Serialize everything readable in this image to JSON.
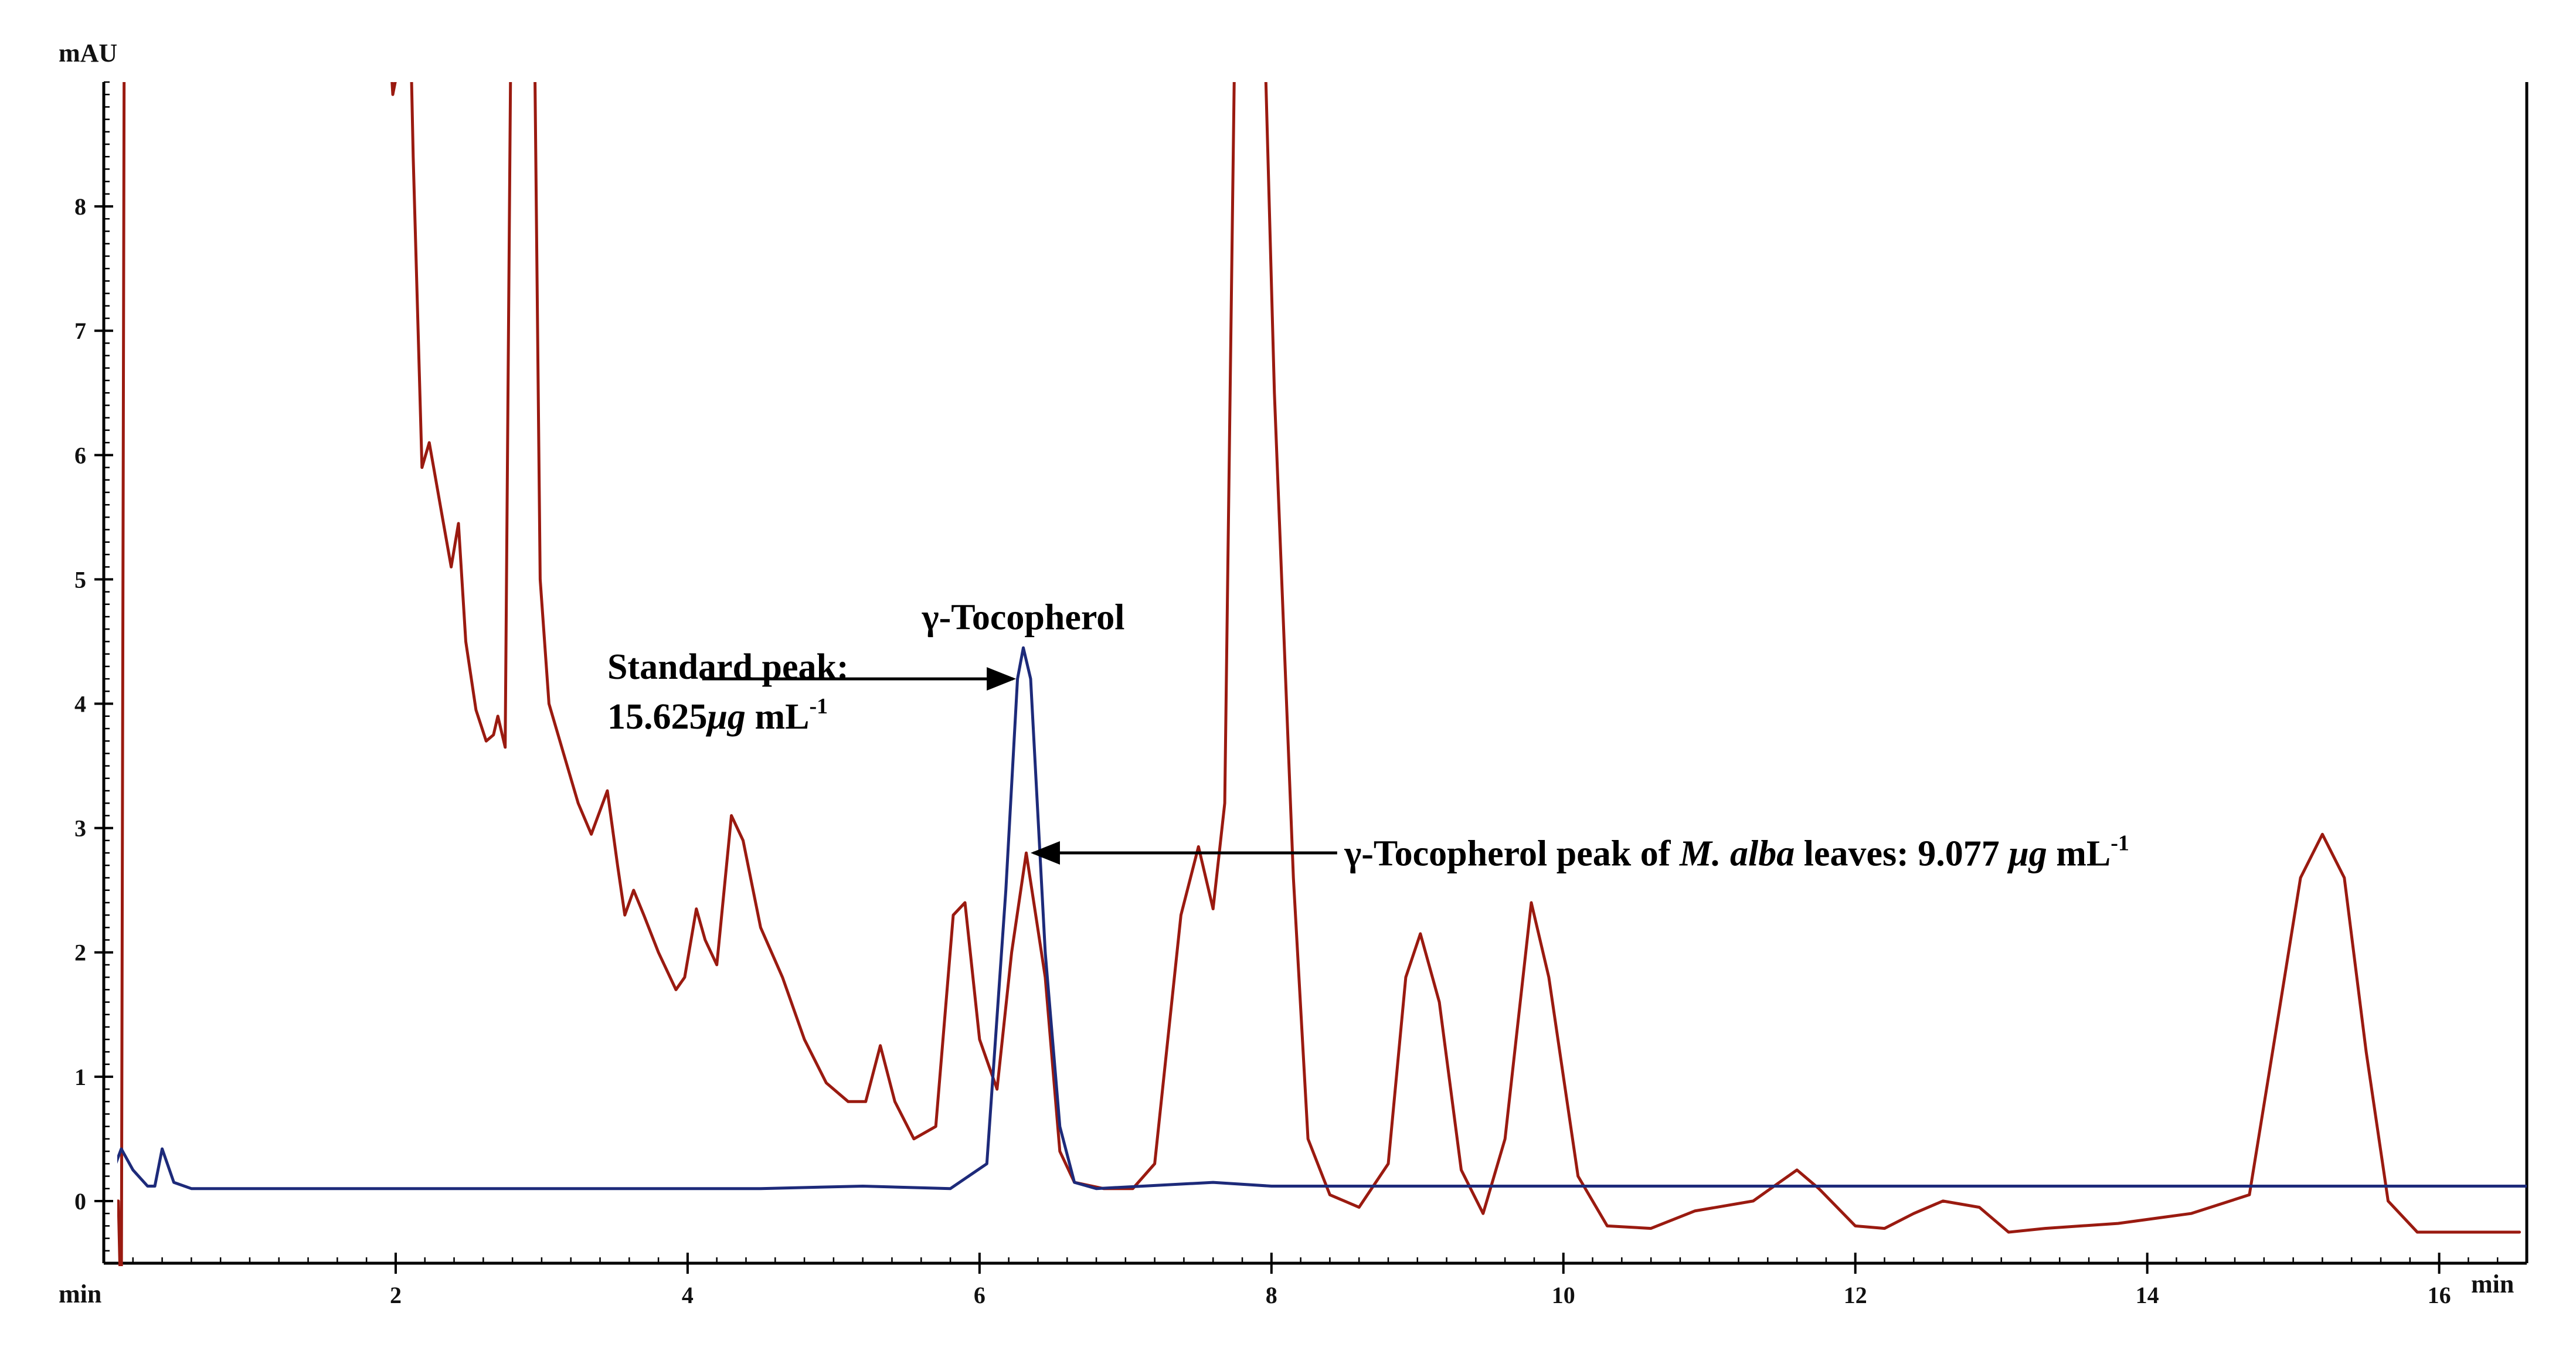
{
  "chart_data": {
    "type": "line",
    "xlabel": "min",
    "ylabel": "mAU",
    "xlim": [
      0.0,
      16.6
    ],
    "ylim": [
      -0.5,
      9.0
    ],
    "x_ticks": [
      2,
      4,
      6,
      8,
      10,
      12,
      14,
      16
    ],
    "y_ticks": [
      0,
      1,
      2,
      3,
      4,
      5,
      6,
      7,
      8
    ],
    "y_tick_labels": [
      "0",
      "1",
      "2",
      "3",
      "4",
      "5",
      "6",
      "7",
      "8"
    ],
    "x_tick_labels": [
      "2",
      "4",
      "6",
      "8",
      "10",
      "12",
      "14",
      "16"
    ],
    "colors": {
      "sample": "#9a1a10",
      "standard": "#1d2a7a",
      "axis": "#000000"
    },
    "series": [
      {
        "key": "sample",
        "color": "#9a1a10",
        "points": [
          [
            0.05,
            0.0
          ],
          [
            0.1,
            0.0
          ],
          [
            0.12,
            -1.0
          ],
          [
            0.14,
            9.5
          ],
          [
            0.2,
            9.5
          ],
          [
            1.95,
            9.5
          ],
          [
            1.98,
            8.9
          ],
          [
            2.03,
            9.2
          ],
          [
            2.1,
            9.5
          ],
          [
            2.12,
            8.4
          ],
          [
            2.18,
            5.9
          ],
          [
            2.23,
            6.1
          ],
          [
            2.26,
            5.9
          ],
          [
            2.32,
            5.5
          ],
          [
            2.38,
            5.1
          ],
          [
            2.43,
            5.45
          ],
          [
            2.48,
            4.5
          ],
          [
            2.55,
            3.95
          ],
          [
            2.62,
            3.7
          ],
          [
            2.67,
            3.75
          ],
          [
            2.7,
            3.9
          ],
          [
            2.75,
            3.65
          ],
          [
            2.79,
            9.5
          ],
          [
            2.95,
            9.5
          ],
          [
            2.99,
            5.0
          ],
          [
            3.05,
            4.0
          ],
          [
            3.15,
            3.6
          ],
          [
            3.25,
            3.2
          ],
          [
            3.34,
            2.95
          ],
          [
            3.45,
            3.3
          ],
          [
            3.52,
            2.7
          ],
          [
            3.57,
            2.3
          ],
          [
            3.63,
            2.5
          ],
          [
            3.7,
            2.3
          ],
          [
            3.8,
            2.0
          ],
          [
            3.92,
            1.7
          ],
          [
            3.98,
            1.8
          ],
          [
            4.06,
            2.35
          ],
          [
            4.12,
            2.1
          ],
          [
            4.2,
            1.9
          ],
          [
            4.3,
            3.1
          ],
          [
            4.38,
            2.9
          ],
          [
            4.5,
            2.2
          ],
          [
            4.65,
            1.8
          ],
          [
            4.8,
            1.3
          ],
          [
            4.95,
            0.95
          ],
          [
            5.1,
            0.8
          ],
          [
            5.22,
            0.8
          ],
          [
            5.32,
            1.25
          ],
          [
            5.42,
            0.8
          ],
          [
            5.55,
            0.5
          ],
          [
            5.7,
            0.6
          ],
          [
            5.82,
            2.3
          ],
          [
            5.9,
            2.4
          ],
          [
            6.0,
            1.3
          ],
          [
            6.12,
            0.9
          ],
          [
            6.22,
            2.0
          ],
          [
            6.32,
            2.8
          ],
          [
            6.45,
            1.8
          ],
          [
            6.55,
            0.4
          ],
          [
            6.65,
            0.15
          ],
          [
            6.85,
            0.1
          ],
          [
            7.05,
            0.1
          ],
          [
            7.2,
            0.3
          ],
          [
            7.38,
            2.3
          ],
          [
            7.5,
            2.85
          ],
          [
            7.6,
            2.35
          ],
          [
            7.68,
            3.2
          ],
          [
            7.75,
            9.5
          ],
          [
            7.95,
            9.5
          ],
          [
            8.02,
            6.5
          ],
          [
            8.15,
            2.6
          ],
          [
            8.25,
            0.5
          ],
          [
            8.4,
            0.05
          ],
          [
            8.6,
            -0.05
          ],
          [
            8.8,
            0.3
          ],
          [
            8.92,
            1.8
          ],
          [
            9.02,
            2.15
          ],
          [
            9.15,
            1.6
          ],
          [
            9.3,
            0.25
          ],
          [
            9.45,
            -0.1
          ],
          [
            9.6,
            0.5
          ],
          [
            9.78,
            2.4
          ],
          [
            9.9,
            1.8
          ],
          [
            10.1,
            0.2
          ],
          [
            10.3,
            -0.2
          ],
          [
            10.6,
            -0.22
          ],
          [
            10.9,
            -0.08
          ],
          [
            11.3,
            0.0
          ],
          [
            11.6,
            0.25
          ],
          [
            11.75,
            0.1
          ],
          [
            12.0,
            -0.2
          ],
          [
            12.2,
            -0.22
          ],
          [
            12.4,
            -0.1
          ],
          [
            12.6,
            0.0
          ],
          [
            12.85,
            -0.05
          ],
          [
            13.05,
            -0.25
          ],
          [
            13.3,
            -0.22
          ],
          [
            13.8,
            -0.18
          ],
          [
            14.3,
            -0.1
          ],
          [
            14.7,
            0.05
          ],
          [
            14.9,
            1.5
          ],
          [
            15.05,
            2.6
          ],
          [
            15.2,
            2.95
          ],
          [
            15.35,
            2.6
          ],
          [
            15.5,
            1.2
          ],
          [
            15.65,
            0.0
          ],
          [
            15.85,
            -0.25
          ],
          [
            16.55,
            -0.25
          ]
        ]
      },
      {
        "key": "standard",
        "color": "#1d2a7a",
        "points": [
          [
            0.0,
            0.08
          ],
          [
            0.05,
            0.2
          ],
          [
            0.12,
            0.42
          ],
          [
            0.2,
            0.25
          ],
          [
            0.3,
            0.12
          ],
          [
            0.35,
            0.12
          ],
          [
            0.4,
            0.42
          ],
          [
            0.48,
            0.15
          ],
          [
            0.6,
            0.1
          ],
          [
            1.0,
            0.1
          ],
          [
            4.5,
            0.1
          ],
          [
            5.2,
            0.12
          ],
          [
            5.8,
            0.1
          ],
          [
            6.05,
            0.3
          ],
          [
            6.18,
            2.5
          ],
          [
            6.26,
            4.2
          ],
          [
            6.3,
            4.45
          ],
          [
            6.35,
            4.2
          ],
          [
            6.45,
            2.0
          ],
          [
            6.55,
            0.6
          ],
          [
            6.65,
            0.15
          ],
          [
            6.8,
            0.1
          ],
          [
            7.6,
            0.15
          ],
          [
            8.0,
            0.12
          ],
          [
            16.6,
            0.12
          ]
        ]
      }
    ],
    "annotations": [
      {
        "text": "γ-Tocopherol",
        "x": 6.3,
        "y": 4.6
      },
      {
        "text": "Standard peak:",
        "x": 3.45,
        "y": 4.2
      },
      {
        "text": "15.625μg mL-1",
        "x": 3.45,
        "y": 3.8,
        "base": "15.625",
        "unit": "μg",
        "rest": " mL",
        "sup": "-1"
      },
      {
        "text": "γ-Tocopherol peak of M. alba leaves: 9.077 μg mL-1",
        "x": 8.5,
        "y": 2.7,
        "prefix": "γ-Tocopherol peak of ",
        "species": "M. alba",
        "middle": " leaves: 9.077 ",
        "unit": "μg",
        "rest": " mL",
        "sup": "-1"
      }
    ],
    "arrows": [
      {
        "from": [
          4.1,
          4.2
        ],
        "to": [
          6.23,
          4.2
        ]
      },
      {
        "from": [
          8.45,
          2.8
        ],
        "to": [
          6.37,
          2.8
        ]
      }
    ]
  }
}
